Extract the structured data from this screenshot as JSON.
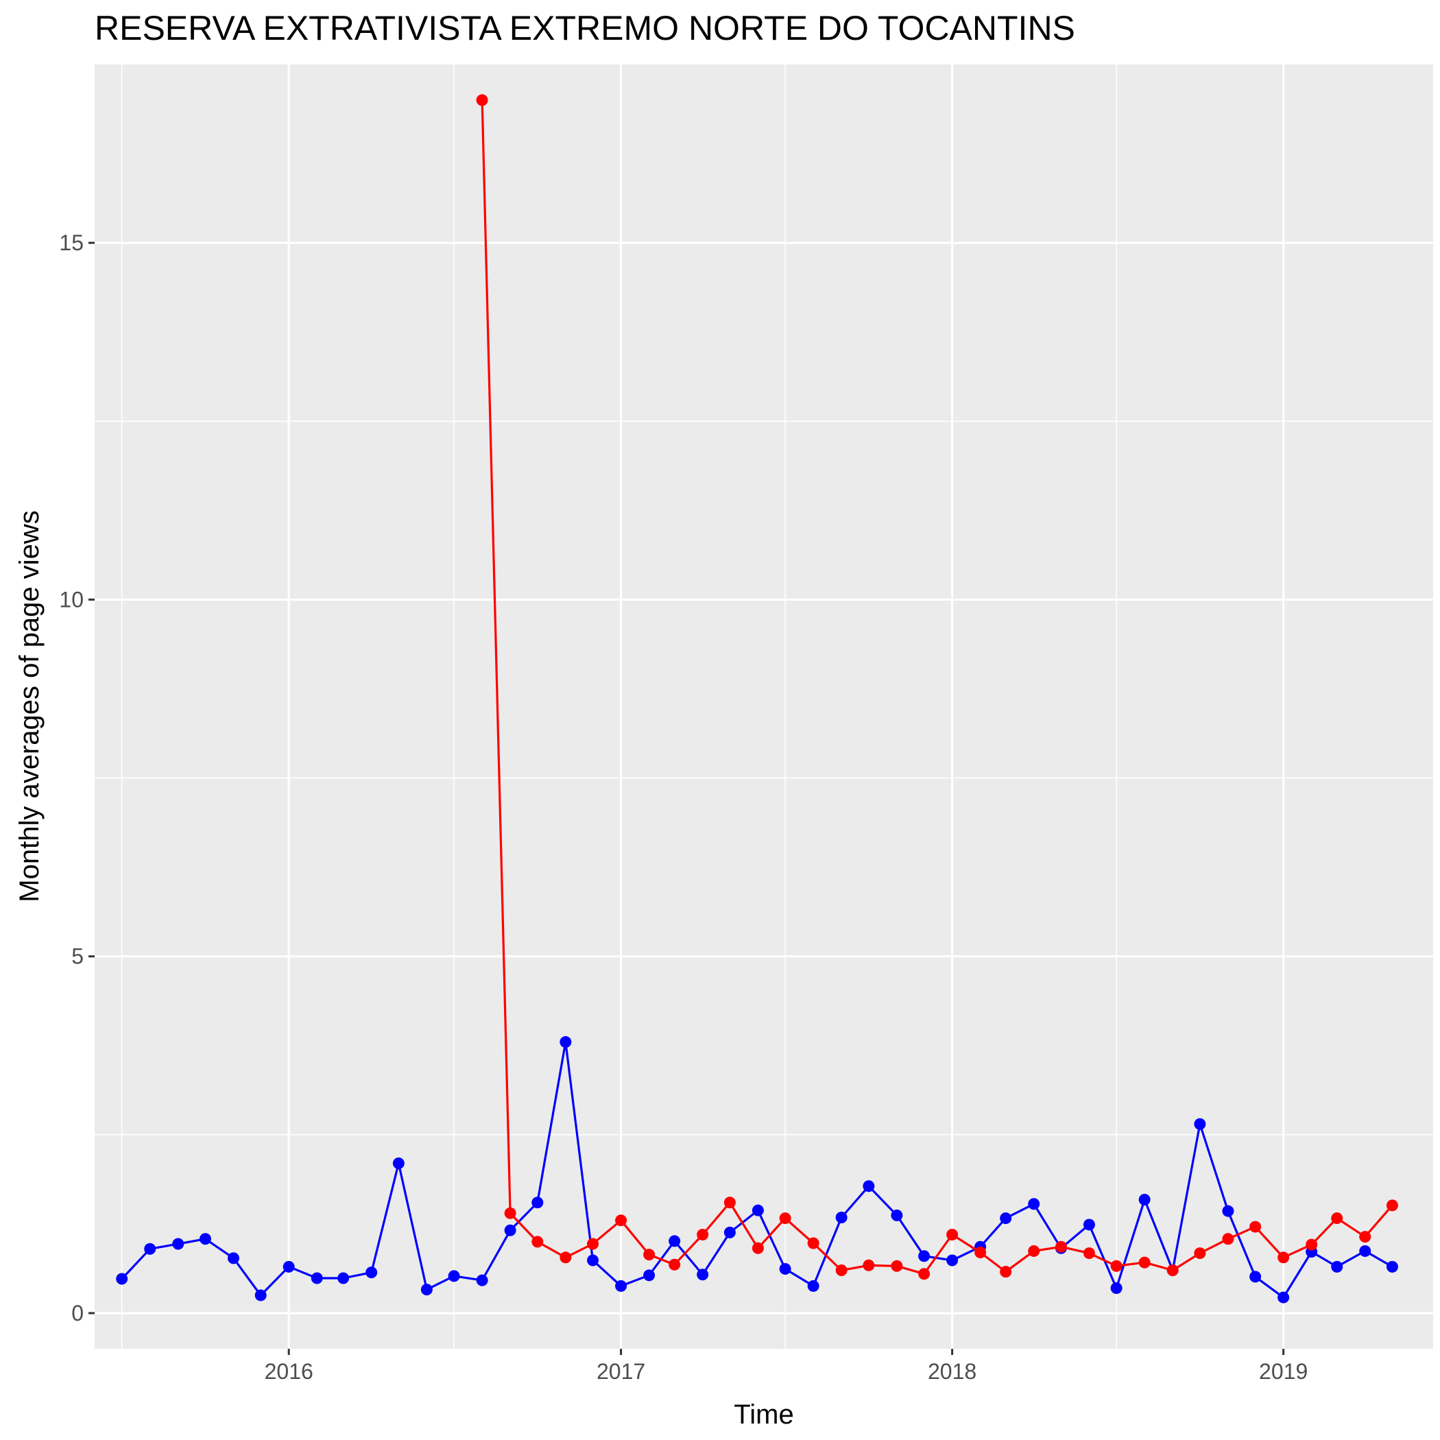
{
  "chart_data": {
    "type": "line",
    "title": "RESERVA EXTRATIVISTA EXTREMO NORTE DO TOCANTINS",
    "xlabel": "Time",
    "ylabel": "Monthly averages of page views",
    "x_ticks": [
      "2016",
      "2017",
      "2018",
      "2019"
    ],
    "y_ticks": [
      "0",
      "5",
      "10",
      "15"
    ],
    "xlim": [
      "2015-06-01",
      "2019-06-15"
    ],
    "ylim": [
      -0.5,
      17.5
    ],
    "grid": true,
    "legend": "none",
    "series": [
      {
        "color": "#0000ff",
        "x": [
          "2015-07-01",
          "2015-08-01",
          "2015-09-01",
          "2015-10-01",
          "2015-11-01",
          "2015-12-01",
          "2016-01-01",
          "2016-02-01",
          "2016-03-01",
          "2016-04-01",
          "2016-05-01",
          "2016-06-01",
          "2016-07-01",
          "2016-08-01",
          "2016-09-01",
          "2016-10-01",
          "2016-11-01",
          "2016-12-01",
          "2017-01-01",
          "2017-02-01",
          "2017-03-01",
          "2017-04-01",
          "2017-05-01",
          "2017-06-01",
          "2017-07-01",
          "2017-08-01",
          "2017-09-01",
          "2017-10-01",
          "2017-11-01",
          "2017-12-01",
          "2018-01-01",
          "2018-02-01",
          "2018-03-01",
          "2018-04-01",
          "2018-05-01",
          "2018-06-01",
          "2018-07-01",
          "2018-08-01",
          "2018-09-01",
          "2018-10-01",
          "2018-11-01",
          "2018-12-01",
          "2019-01-01",
          "2019-02-01",
          "2019-03-01",
          "2019-04-01",
          "2019-05-01"
        ],
        "y": [
          0.48,
          0.9,
          0.97,
          1.04,
          0.77,
          0.25,
          0.65,
          0.49,
          0.49,
          0.57,
          2.1,
          0.33,
          0.52,
          0.46,
          1.16,
          1.55,
          3.8,
          0.74,
          0.38,
          0.53,
          1.01,
          0.54,
          1.13,
          1.44,
          0.62,
          0.38,
          1.34,
          1.78,
          1.37,
          0.8,
          0.74,
          0.93,
          1.33,
          1.53,
          0.91,
          1.24,
          0.35,
          1.59,
          0.6,
          2.65,
          1.43,
          0.51,
          0.22,
          0.86,
          0.65,
          0.87,
          0.65
        ]
      },
      {
        "color": "#ff0000",
        "x": [
          "2016-08-01",
          "2016-09-01",
          "2016-10-01",
          "2016-11-01",
          "2016-12-01",
          "2017-01-01",
          "2017-02-01",
          "2017-03-01",
          "2017-04-01",
          "2017-05-01",
          "2017-06-01",
          "2017-07-01",
          "2017-08-01",
          "2017-09-01",
          "2017-10-01",
          "2017-11-01",
          "2017-12-01",
          "2018-01-01",
          "2018-02-01",
          "2018-03-01",
          "2018-04-01",
          "2018-05-01",
          "2018-06-01",
          "2018-07-01",
          "2018-08-01",
          "2018-09-01",
          "2018-10-01",
          "2018-11-01",
          "2018-12-01",
          "2019-01-01",
          "2019-02-01",
          "2019-03-01",
          "2019-04-01",
          "2019-05-01"
        ],
        "y": [
          17.0,
          1.4,
          1.0,
          0.78,
          0.97,
          1.3,
          0.82,
          0.68,
          1.1,
          1.55,
          0.91,
          1.33,
          0.98,
          0.6,
          0.67,
          0.66,
          0.55,
          1.1,
          0.85,
          0.58,
          0.87,
          0.93,
          0.84,
          0.66,
          0.71,
          0.6,
          0.84,
          1.04,
          1.21,
          0.78,
          0.96,
          1.33,
          1.07,
          1.51
        ]
      }
    ]
  }
}
